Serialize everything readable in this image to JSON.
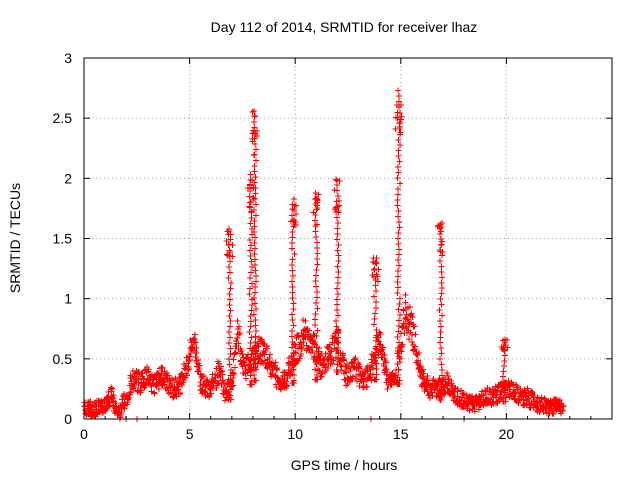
{
  "chart_data": {
    "type": "scatter",
    "title": "Day 112 of 2014, SRMTID for receiver lhaz",
    "xlabel": "GPS time / hours",
    "ylabel": "SRMTID / TECUs",
    "xlim": [
      0,
      25
    ],
    "ylim": [
      0,
      3
    ],
    "xticks": [
      0,
      5,
      10,
      15,
      20
    ],
    "yticks": [
      0,
      0.5,
      1,
      1.5,
      2,
      2.5,
      3
    ],
    "grid": true,
    "marker": "+",
    "marker_color": "#ff0000",
    "series": [
      {
        "name": "SRMTID",
        "baseline": [
          [
            0.0,
            0.1
          ],
          [
            0.5,
            0.08
          ],
          [
            1.0,
            0.12
          ],
          [
            1.3,
            0.2
          ],
          [
            1.6,
            0.05
          ],
          [
            2.0,
            0.18
          ],
          [
            2.3,
            0.32
          ],
          [
            2.7,
            0.3
          ],
          [
            3.0,
            0.35
          ],
          [
            3.3,
            0.28
          ],
          [
            3.7,
            0.35
          ],
          [
            4.0,
            0.28
          ],
          [
            4.3,
            0.25
          ],
          [
            4.6,
            0.3
          ],
          [
            4.9,
            0.45
          ],
          [
            5.2,
            0.7
          ],
          [
            5.5,
            0.3
          ],
          [
            6.0,
            0.25
          ],
          [
            6.4,
            0.4
          ],
          [
            6.7,
            0.2
          ],
          [
            7.0,
            0.3
          ],
          [
            7.3,
            0.7
          ],
          [
            7.6,
            0.4
          ],
          [
            8.0,
            0.5
          ],
          [
            8.3,
            0.6
          ],
          [
            8.7,
            0.5
          ],
          [
            9.0,
            0.4
          ],
          [
            9.3,
            0.3
          ],
          [
            9.6,
            0.35
          ],
          [
            10.0,
            0.55
          ],
          [
            10.4,
            0.7
          ],
          [
            10.8,
            0.65
          ],
          [
            11.2,
            0.45
          ],
          [
            11.6,
            0.5
          ],
          [
            12.0,
            0.65
          ],
          [
            12.4,
            0.35
          ],
          [
            12.8,
            0.45
          ],
          [
            13.2,
            0.3
          ],
          [
            13.6,
            0.4
          ],
          [
            14.0,
            0.7
          ],
          [
            14.4,
            0.3
          ],
          [
            14.8,
            0.35
          ],
          [
            15.2,
            0.9
          ],
          [
            15.6,
            0.7
          ],
          [
            16.0,
            0.35
          ],
          [
            16.4,
            0.25
          ],
          [
            16.8,
            0.25
          ],
          [
            17.2,
            0.3
          ],
          [
            17.6,
            0.2
          ],
          [
            18.0,
            0.15
          ],
          [
            18.5,
            0.12
          ],
          [
            19.0,
            0.18
          ],
          [
            19.5,
            0.2
          ],
          [
            20.0,
            0.25
          ],
          [
            20.5,
            0.2
          ],
          [
            21.0,
            0.18
          ],
          [
            21.5,
            0.12
          ],
          [
            22.0,
            0.1
          ],
          [
            22.5,
            0.1
          ],
          [
            22.7,
            0.12
          ]
        ],
        "spikes": [
          {
            "x": 6.9,
            "peak": 1.58
          },
          {
            "x": 7.9,
            "peak": 2.03
          },
          {
            "x": 8.1,
            "peak": 2.56
          },
          {
            "x": 9.9,
            "peak": 1.83
          },
          {
            "x": 11.0,
            "peak": 1.88
          },
          {
            "x": 12.0,
            "peak": 1.99
          },
          {
            "x": 13.8,
            "peak": 1.34
          },
          {
            "x": 14.9,
            "peak": 2.73
          },
          {
            "x": 16.9,
            "peak": 1.63
          },
          {
            "x": 19.9,
            "peak": 0.66
          }
        ]
      }
    ]
  }
}
